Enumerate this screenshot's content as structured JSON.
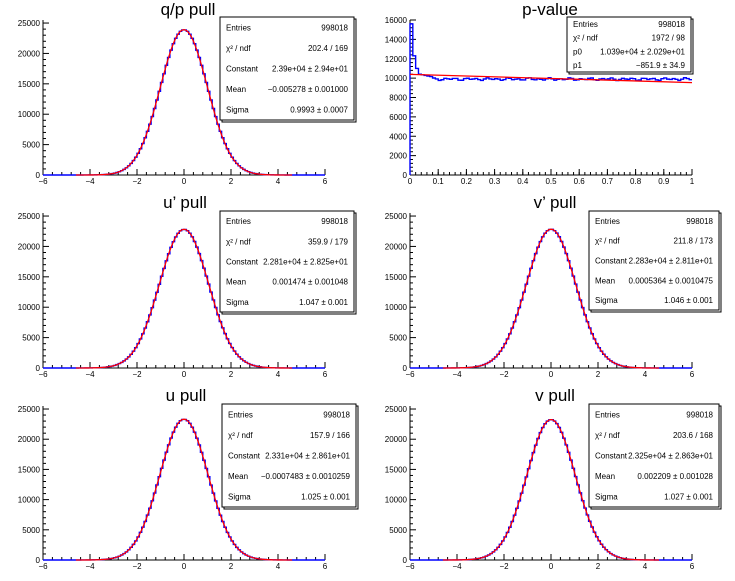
{
  "chart_data": [
    {
      "type": "histogram",
      "title": "q/p pull",
      "xlim": [
        -6,
        6
      ],
      "ylim": [
        0,
        25500
      ],
      "xticks": [
        "−6",
        "−4",
        "−2",
        "0",
        "2",
        "4",
        "6"
      ],
      "yticks": [
        "0",
        "5000",
        "10000",
        "15000",
        "20000",
        "25000"
      ],
      "series": [
        {
          "name": "histogram",
          "color": "#0000ff",
          "shape": "gaussian",
          "amplitude": 23900,
          "mean": 0.0,
          "sigma": 1.0
        },
        {
          "name": "gaussian fit",
          "color": "#ff0000",
          "shape": "gaussian",
          "amplitude": 23900,
          "mean": -0.005,
          "sigma": 0.9993
        }
      ],
      "stats": [
        {
          "label": "Entries",
          "value": "998018"
        },
        {
          "label": "χ² / ndf",
          "value": "202.4 / 169"
        },
        {
          "label": "Constant",
          "value": "2.39e+04 ± 2.94e+01"
        },
        {
          "label": "Mean",
          "value": "−0.005278 ± 0.001000"
        },
        {
          "label": "Sigma",
          "value": "0.9993 ± 0.0007"
        }
      ]
    },
    {
      "type": "histogram",
      "title": "p-value",
      "xlim": [
        0,
        1
      ],
      "ylim": [
        0,
        16000
      ],
      "xticks": [
        "0",
        "0.1",
        "0.2",
        "0.3",
        "0.4",
        "0.5",
        "0.6",
        "0.7",
        "0.8",
        "0.9",
        "1"
      ],
      "yticks": [
        "0",
        "2000",
        "4000",
        "6000",
        "8000",
        "10000",
        "12000",
        "14000",
        "16000"
      ],
      "series": [
        {
          "name": "histogram",
          "color": "#0000ff",
          "shape": "flat-spike",
          "level": 9900,
          "first_bin": 15600,
          "second_bin": 12300,
          "third_bin": 11000
        },
        {
          "name": "linear fit",
          "color": "#ff0000",
          "shape": "linear",
          "p0": 10390,
          "p1": -851.9
        }
      ],
      "stats": [
        {
          "label": "Entries",
          "value": "998018"
        },
        {
          "label": "χ² / ndf",
          "value": "1972 / 98"
        },
        {
          "label": "p0",
          "value": "1.039e+04 ± 2.029e+01"
        },
        {
          "label": "p1",
          "value": "−851.9 ± 34.9"
        }
      ]
    },
    {
      "type": "histogram",
      "title": "u’ pull",
      "xlim": [
        -6,
        6
      ],
      "ylim": [
        0,
        25500
      ],
      "xticks": [
        "−6",
        "−4",
        "−2",
        "0",
        "2",
        "4",
        "6"
      ],
      "yticks": [
        "0",
        "5000",
        "10000",
        "15000",
        "20000",
        "25000"
      ],
      "series": [
        {
          "name": "histogram",
          "color": "#0000ff",
          "shape": "gaussian",
          "amplitude": 22810,
          "mean": 0.0015,
          "sigma": 1.047
        },
        {
          "name": "gaussian fit",
          "color": "#ff0000",
          "shape": "gaussian",
          "amplitude": 22810,
          "mean": 0.0015,
          "sigma": 1.047
        }
      ],
      "stats": [
        {
          "label": "Entries",
          "value": "998018"
        },
        {
          "label": "χ² / ndf",
          "value": "359.9 / 179"
        },
        {
          "label": "Constant",
          "value": "2.281e+04 ± 2.825e+01"
        },
        {
          "label": "Mean",
          "value": "0.001474 ± 0.001048"
        },
        {
          "label": "Sigma",
          "value": "1.047 ± 0.001"
        }
      ]
    },
    {
      "type": "histogram",
      "title": "v’ pull",
      "xlim": [
        -6,
        6
      ],
      "ylim": [
        0,
        25500
      ],
      "xticks": [
        "−6",
        "−4",
        "−2",
        "0",
        "2",
        "4",
        "6"
      ],
      "yticks": [
        "0",
        "5000",
        "10000",
        "15000",
        "20000",
        "25000"
      ],
      "series": [
        {
          "name": "histogram",
          "color": "#0000ff",
          "shape": "gaussian",
          "amplitude": 22830,
          "mean": 0.0005,
          "sigma": 1.046
        },
        {
          "name": "gaussian fit",
          "color": "#ff0000",
          "shape": "gaussian",
          "amplitude": 22830,
          "mean": 0.0005,
          "sigma": 1.046
        }
      ],
      "stats": [
        {
          "label": "Entries",
          "value": "998018"
        },
        {
          "label": "χ² / ndf",
          "value": "211.8 / 173"
        },
        {
          "label": "Constant",
          "value": "2.283e+04 ± 2.811e+01"
        },
        {
          "label": "Mean",
          "value": "0.0005364 ± 0.0010475"
        },
        {
          "label": "Sigma",
          "value": "1.046 ± 0.001"
        }
      ]
    },
    {
      "type": "histogram",
      "title": "u pull",
      "xlim": [
        -6,
        6
      ],
      "ylim": [
        0,
        25500
      ],
      "xticks": [
        "−6",
        "−4",
        "−2",
        "0",
        "2",
        "4",
        "6"
      ],
      "yticks": [
        "0",
        "5000",
        "10000",
        "15000",
        "20000",
        "25000"
      ],
      "series": [
        {
          "name": "histogram",
          "color": "#0000ff",
          "shape": "gaussian",
          "amplitude": 23310,
          "mean": -0.0007,
          "sigma": 1.025
        },
        {
          "name": "gaussian fit",
          "color": "#ff0000",
          "shape": "gaussian",
          "amplitude": 23310,
          "mean": -0.0007,
          "sigma": 1.025
        }
      ],
      "stats": [
        {
          "label": "Entries",
          "value": "998018"
        },
        {
          "label": "χ² / ndf",
          "value": "157.9 / 166"
        },
        {
          "label": "Constant",
          "value": "2.331e+04 ± 2.861e+01"
        },
        {
          "label": "Mean",
          "value": "−0.0007483 ± 0.0010259"
        },
        {
          "label": "Sigma",
          "value": "1.025 ± 0.001"
        }
      ]
    },
    {
      "type": "histogram",
      "title": "v pull",
      "xlim": [
        -6,
        6
      ],
      "ylim": [
        0,
        25500
      ],
      "xticks": [
        "−6",
        "−4",
        "−2",
        "0",
        "2",
        "4",
        "6"
      ],
      "yticks": [
        "0",
        "5000",
        "10000",
        "15000",
        "20000",
        "25000"
      ],
      "series": [
        {
          "name": "histogram",
          "color": "#0000ff",
          "shape": "gaussian",
          "amplitude": 23250,
          "mean": 0.0022,
          "sigma": 1.027
        },
        {
          "name": "gaussian fit",
          "color": "#ff0000",
          "shape": "gaussian",
          "amplitude": 23250,
          "mean": 0.0022,
          "sigma": 1.027
        }
      ],
      "stats": [
        {
          "label": "Entries",
          "value": "998018"
        },
        {
          "label": "χ² / ndf",
          "value": "203.6 / 168"
        },
        {
          "label": "Constant",
          "value": "2.325e+04 ± 2.863e+01"
        },
        {
          "label": "Mean",
          "value": "0.002209 ± 0.001028"
        },
        {
          "label": "Sigma",
          "value": "1.027 ± 0.001"
        }
      ]
    }
  ]
}
